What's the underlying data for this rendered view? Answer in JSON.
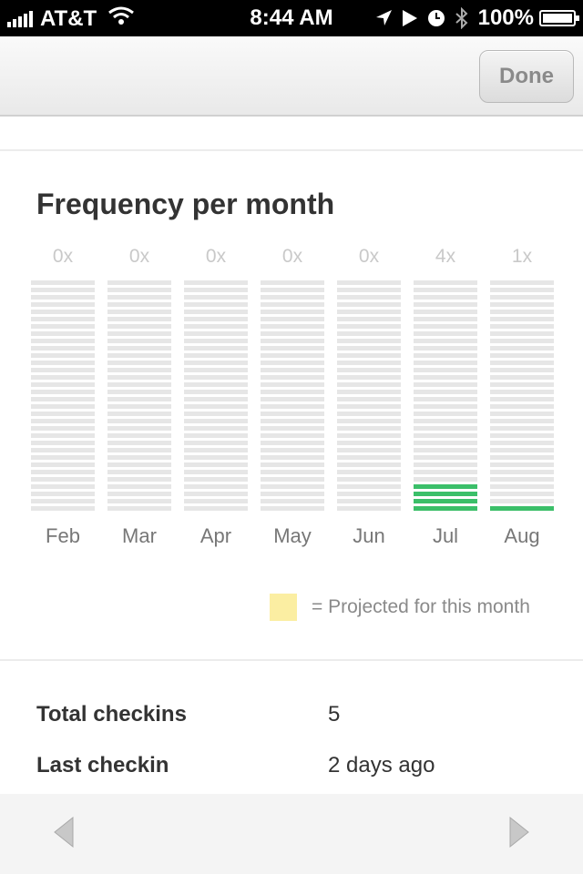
{
  "status_bar": {
    "carrier": "AT&T",
    "time": "8:44 AM",
    "battery": "100%"
  },
  "navbar": {
    "done_label": "Done"
  },
  "chart_data": {
    "type": "bar",
    "title": "Frequency per month",
    "categories": [
      "Feb",
      "Mar",
      "Apr",
      "May",
      "Jun",
      "Jul",
      "Aug"
    ],
    "values": [
      0,
      0,
      0,
      0,
      0,
      4,
      1
    ],
    "value_labels": [
      "0x",
      "0x",
      "0x",
      "0x",
      "0x",
      "4x",
      "1x"
    ],
    "bar_color": "#3bbf69",
    "empty_color": "#e6e6e6"
  },
  "legend": {
    "swatch_color": "#fbeea2",
    "text": "= Projected for this month"
  },
  "stats": {
    "total_checkins_label": "Total checkins",
    "total_checkins_value": "5",
    "last_checkin_label": "Last checkin",
    "last_checkin_value": "2 days ago"
  },
  "toolbar": {
    "back_icon": "back-arrow-icon",
    "forward_icon": "forward-arrow-icon"
  }
}
